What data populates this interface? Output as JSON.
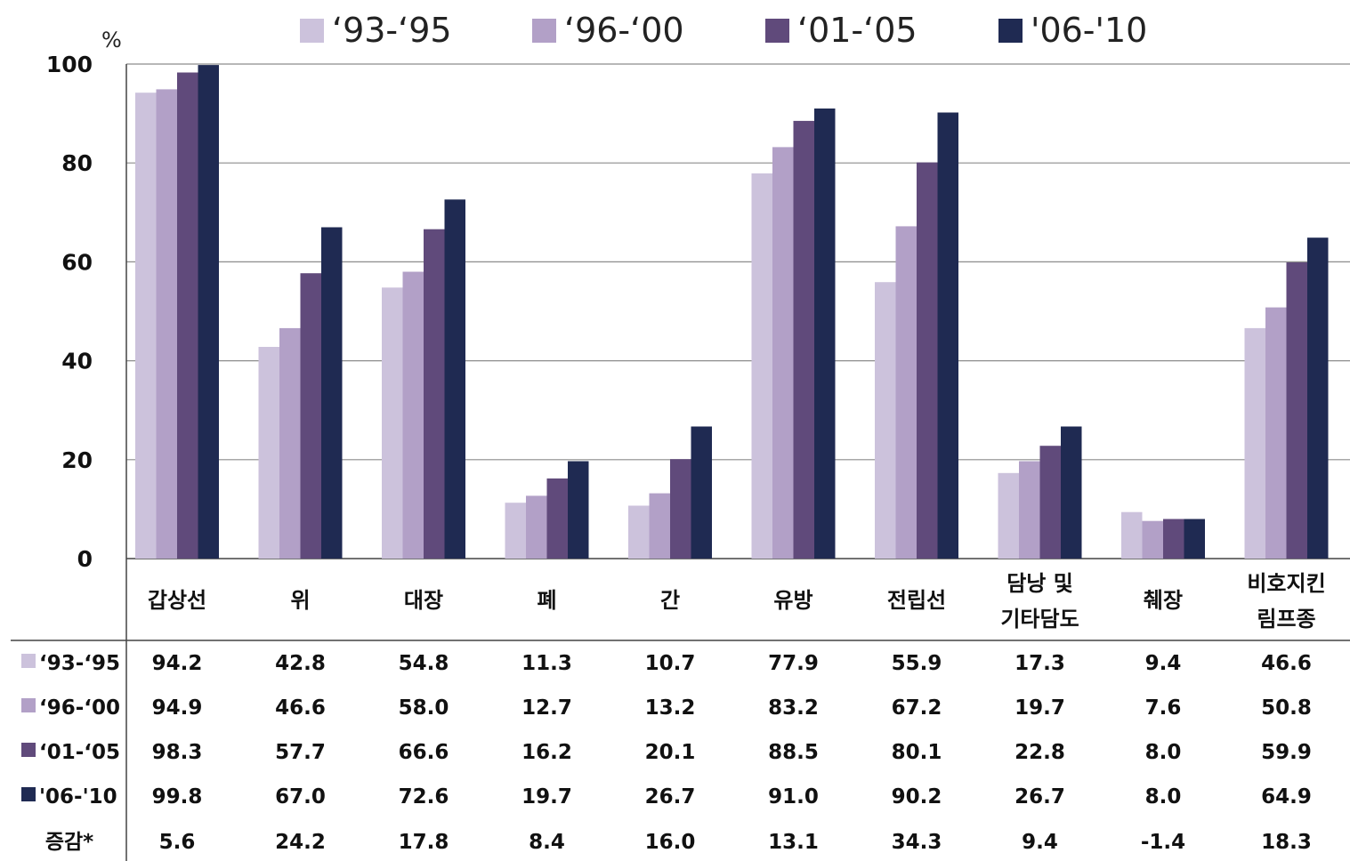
{
  "chart_data": {
    "type": "bar",
    "unit_label": "%",
    "ylim": [
      0,
      100
    ],
    "yticks": [
      "0",
      "20",
      "40",
      "60",
      "80",
      "100"
    ],
    "categories": [
      [
        "갑상선"
      ],
      [
        "위"
      ],
      [
        "대장"
      ],
      [
        "폐"
      ],
      [
        "간"
      ],
      [
        "유방"
      ],
      [
        "전립선"
      ],
      [
        "담낭 및",
        "기타담도"
      ],
      [
        "췌장"
      ],
      [
        "비호지킨",
        "림프종"
      ]
    ],
    "series": [
      {
        "name": "‘93-‘95",
        "color": "#ccc2dc",
        "values": [
          94.2,
          42.8,
          54.8,
          11.3,
          10.7,
          77.9,
          55.9,
          17.3,
          9.4,
          46.6
        ]
      },
      {
        "name": "‘96-‘00",
        "color": "#b2a0c7",
        "values": [
          94.9,
          46.6,
          58.0,
          12.7,
          13.2,
          83.2,
          67.2,
          19.7,
          7.6,
          50.8
        ]
      },
      {
        "name": "‘01-‘05",
        "color": "#604a7b",
        "values": [
          98.3,
          57.7,
          66.6,
          16.2,
          20.1,
          88.5,
          80.1,
          22.8,
          8.0,
          59.9
        ]
      },
      {
        "name": "'06-'10",
        "color": "#1f2a52",
        "values": [
          99.8,
          67.0,
          72.6,
          19.7,
          26.7,
          91.0,
          90.2,
          26.7,
          8.0,
          64.9
        ]
      }
    ],
    "legend_placement": "top",
    "grid": true,
    "table": {
      "rows": [
        {
          "label": "‘93-‘95",
          "color": "#ccc2dc",
          "cells": [
            "94.2",
            "42.8",
            "54.8",
            "11.3",
            "10.7",
            "77.9",
            "55.9",
            "17.3",
            "9.4",
            "46.6"
          ]
        },
        {
          "label": "‘96-‘00",
          "color": "#b2a0c7",
          "cells": [
            "94.9",
            "46.6",
            "58.0",
            "12.7",
            "13.2",
            "83.2",
            "67.2",
            "19.7",
            "7.6",
            "50.8"
          ]
        },
        {
          "label": "‘01-‘05",
          "color": "#604a7b",
          "cells": [
            "98.3",
            "57.7",
            "66.6",
            "16.2",
            "20.1",
            "88.5",
            "80.1",
            "22.8",
            "8.0",
            "59.9"
          ]
        },
        {
          "label": "'06-'10",
          "color": "#1f2a52",
          "cells": [
            "99.8",
            "67.0",
            "72.6",
            "19.7",
            "26.7",
            "91.0",
            "90.2",
            "26.7",
            "8.0",
            "64.9"
          ]
        },
        {
          "label": "증감*",
          "color": "",
          "cells": [
            "5.6",
            "24.2",
            "17.8",
            "8.4",
            "16.0",
            "13.1",
            "34.3",
            "9.4",
            "-1.4",
            "18.3"
          ]
        }
      ]
    }
  }
}
